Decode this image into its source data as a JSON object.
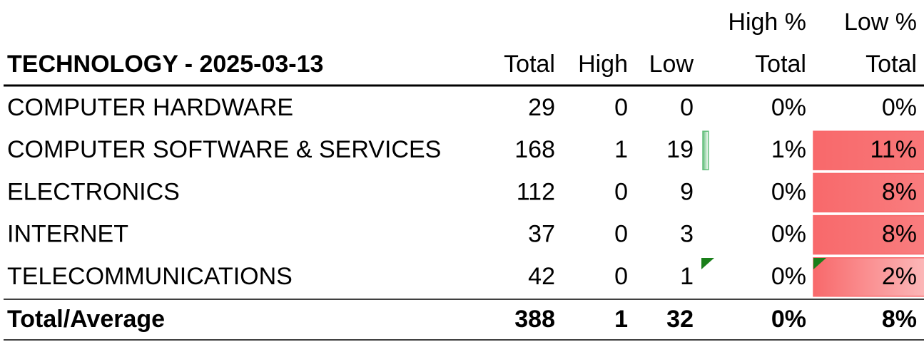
{
  "header": {
    "title": "TECHNOLOGY - 2025-03-13",
    "columns": [
      {
        "label": "Total"
      },
      {
        "label": "High"
      },
      {
        "label": "Low"
      },
      {
        "above": "High %",
        "label": "Total"
      },
      {
        "above": "Low %",
        "label": "Total"
      }
    ]
  },
  "table": {
    "rows": [
      [
        "COMPUTER HARDWARE",
        29,
        0,
        0,
        "0%",
        "0%"
      ],
      [
        "COMPUTER SOFTWARE & SERVICES",
        168,
        1,
        19,
        "1%",
        "11%"
      ],
      [
        "ELECTRONICS",
        112,
        0,
        9,
        "0%",
        "8%"
      ],
      [
        "INTERNET",
        37,
        0,
        3,
        "0%",
        "8%"
      ],
      [
        "TELECOMMUNICATIONS",
        42,
        0,
        1,
        "0%",
        "2%"
      ]
    ],
    "total": [
      "Total/Average",
      388,
      1,
      32,
      "0%",
      "8%"
    ]
  }
}
